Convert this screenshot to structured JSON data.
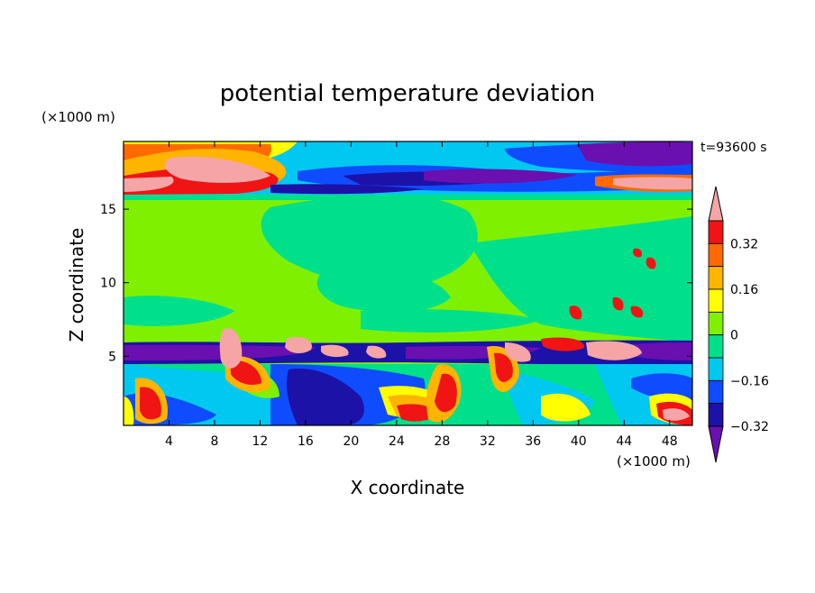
{
  "chart_data": {
    "type": "heatmap",
    "title": "potential temperature deviation",
    "xlabel": "X coordinate",
    "ylabel": "Z coordinate",
    "x_unit": "(×1000 m)",
    "y_unit": "(×1000 m)",
    "time_label": "t=93600 s",
    "xlim": [
      0,
      50
    ],
    "ylim": [
      0.3,
      19.6
    ],
    "x_ticks": [
      4,
      8,
      12,
      16,
      20,
      24,
      28,
      32,
      36,
      40,
      44,
      48
    ],
    "y_ticks": [
      5,
      10,
      15
    ],
    "colorbar": {
      "levels": [
        -0.4,
        -0.32,
        -0.24,
        -0.16,
        -0.08,
        0,
        0.08,
        0.16,
        0.24,
        0.32,
        0.4
      ],
      "tick_labels": [
        "0.32",
        "0.16",
        "0",
        "−0.16",
        "−0.32"
      ],
      "tick_values": [
        0.32,
        0.16,
        0,
        -0.16,
        -0.32
      ],
      "colors": [
        "#6a0fb0",
        "#1c12a8",
        "#0f4cff",
        "#00c8f0",
        "#00e08a",
        "#7ff000",
        "#ffff00",
        "#ffb400",
        "#ff6a00",
        "#f01414",
        "#f5a5a5"
      ]
    },
    "grid": false,
    "legend": "colorbar-right"
  }
}
